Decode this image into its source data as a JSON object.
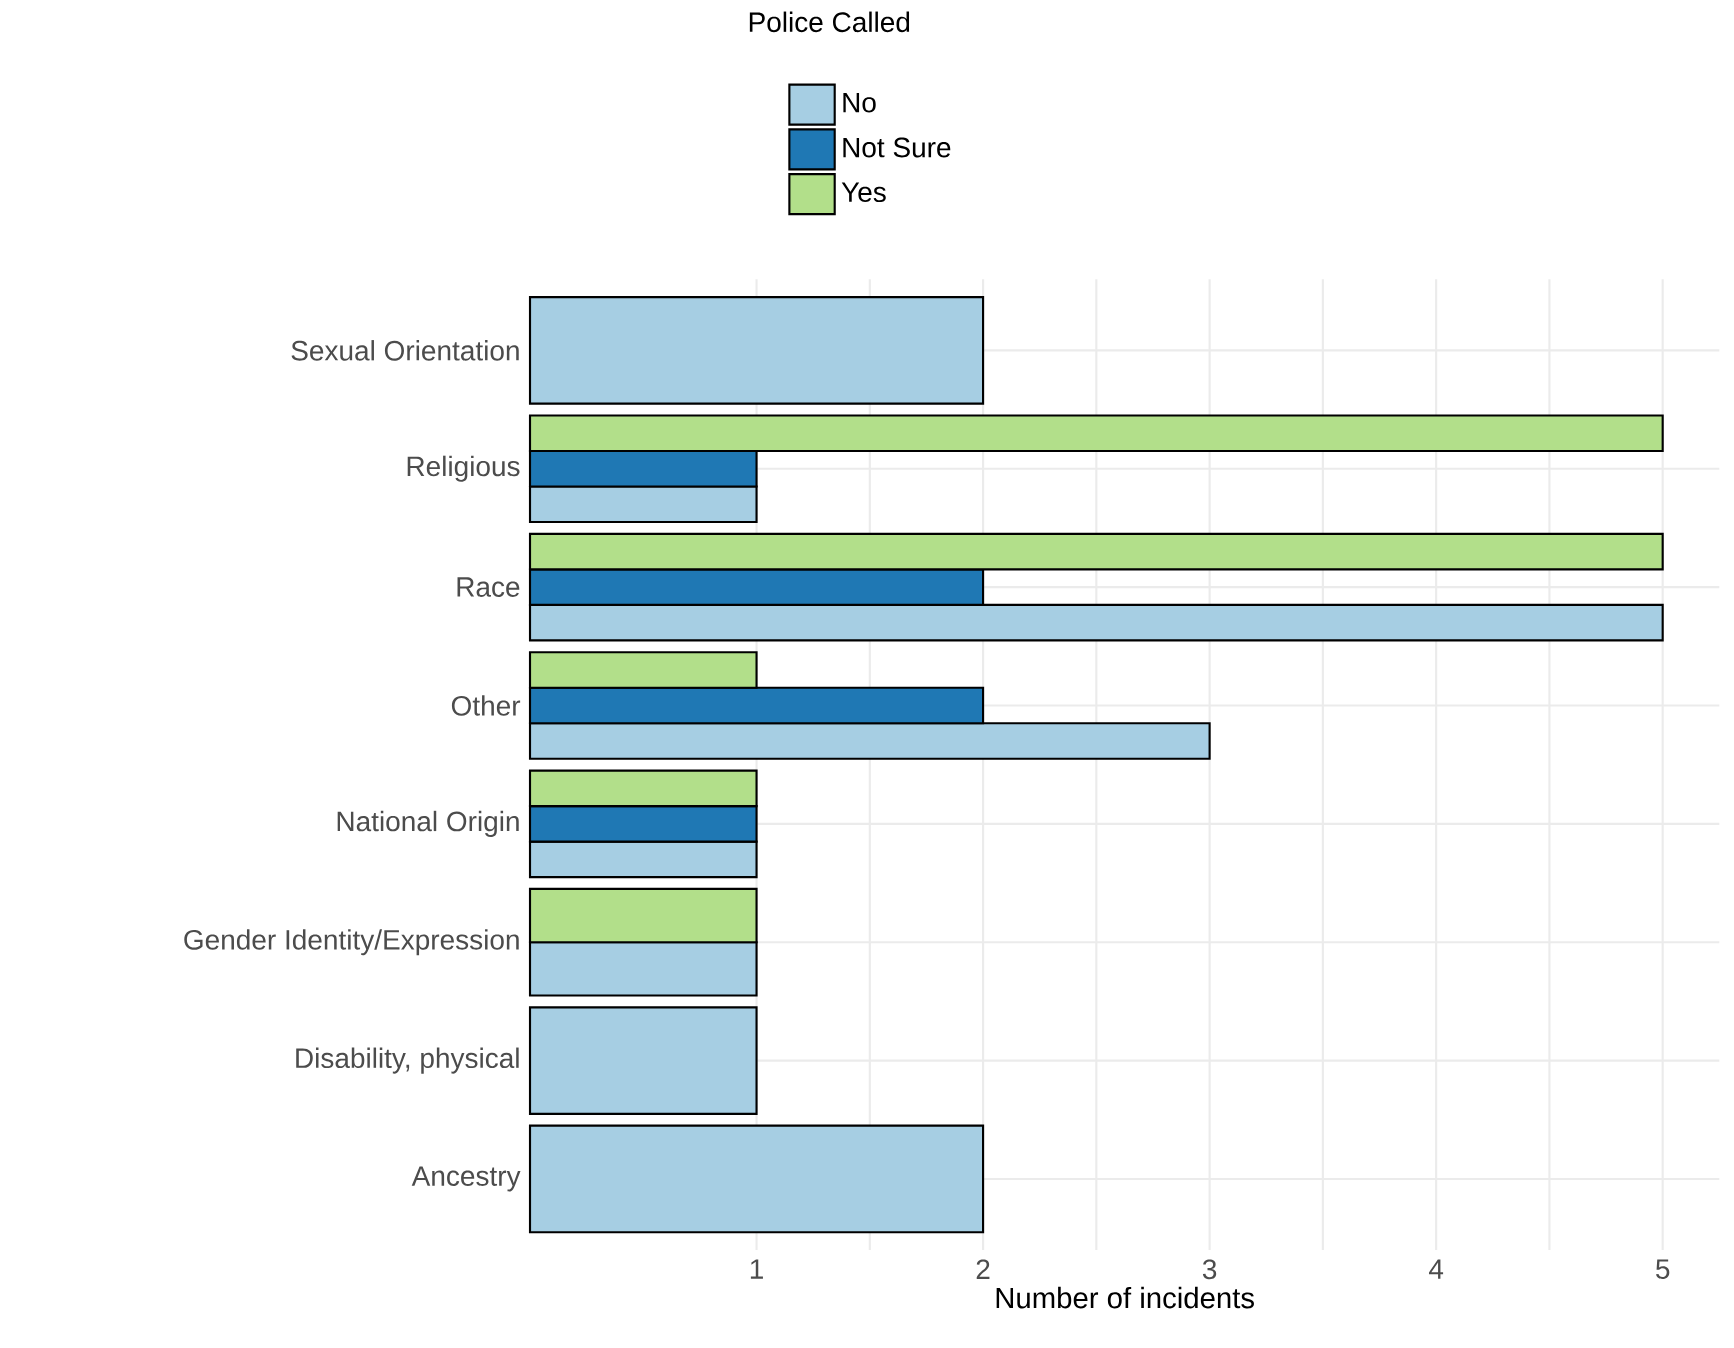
{
  "chart_data": {
    "type": "bar",
    "orientation": "horizontal",
    "xlabel": "Number of incidents",
    "legend_title": "Police Called",
    "legend": "top",
    "grid": true,
    "categories": [
      "Sexual Orientation",
      "Religious",
      "Race",
      "Other",
      "National Origin",
      "Gender Identity/Expression",
      "Disability, physical",
      "Ancestry"
    ],
    "series": [
      {
        "name": "No",
        "color": "#a6cee3",
        "values": [
          2,
          1,
          5,
          3,
          1,
          1,
          1,
          2
        ]
      },
      {
        "name": "Not Sure",
        "color": "#1f78b4",
        "values": [
          null,
          1,
          2,
          2,
          1,
          null,
          null,
          null
        ]
      },
      {
        "name": "Yes",
        "color": "#b2df8a",
        "values": [
          null,
          5,
          5,
          1,
          1,
          1,
          null,
          null
        ]
      }
    ],
    "xlim": [
      0,
      5.25
    ],
    "xticks": [
      1,
      2,
      3,
      4,
      5
    ]
  }
}
